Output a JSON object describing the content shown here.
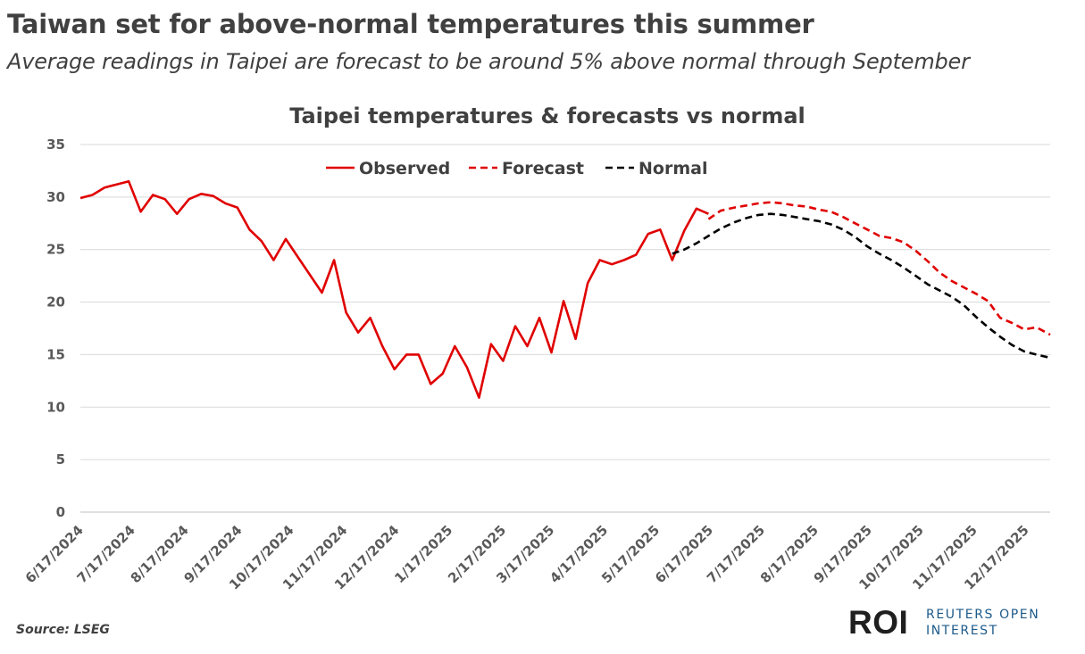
{
  "headline": "Taiwan set for above-normal temperatures this summer",
  "subheadline": "Average readings in Taipei are forecast to be around 5% above normal through September",
  "source": "Source: LSEG",
  "logo": {
    "mark": "ROI",
    "line1": "REUTERS OPEN",
    "line2": "INTEREST"
  },
  "chart_data": {
    "type": "line",
    "title": "Taipei temperatures & forecasts vs normal",
    "xlabel": "",
    "ylabel": "",
    "ylim": [
      0,
      35
    ],
    "yticks": [
      0,
      5,
      10,
      15,
      20,
      25,
      30,
      35
    ],
    "x_start": "2024-06-17",
    "x_end": "2025-12-31",
    "xticks": [
      "6/17/2024",
      "7/17/2024",
      "8/17/2024",
      "9/17/2024",
      "10/17/2024",
      "11/17/2024",
      "12/17/2024",
      "1/17/2025",
      "2/17/2025",
      "3/17/2025",
      "4/17/2025",
      "5/17/2025",
      "6/17/2025",
      "7/17/2025",
      "8/17/2025",
      "9/17/2025",
      "10/17/2025",
      "11/17/2025",
      "12/17/2025"
    ],
    "grid": true,
    "legend_position": "top-center",
    "series": [
      {
        "name": "Observed",
        "color": "#e00000",
        "style": "solid",
        "points": [
          [
            "2024-06-17",
            29.9
          ],
          [
            "2024-06-24",
            30.2
          ],
          [
            "2024-07-01",
            30.9
          ],
          [
            "2024-07-08",
            31.2
          ],
          [
            "2024-07-15",
            31.5
          ],
          [
            "2024-07-22",
            28.6
          ],
          [
            "2024-07-29",
            30.2
          ],
          [
            "2024-08-05",
            29.8
          ],
          [
            "2024-08-12",
            28.4
          ],
          [
            "2024-08-19",
            29.8
          ],
          [
            "2024-08-26",
            30.3
          ],
          [
            "2024-09-02",
            30.1
          ],
          [
            "2024-09-09",
            29.4
          ],
          [
            "2024-09-16",
            29.0
          ],
          [
            "2024-09-23",
            26.9
          ],
          [
            "2024-09-30",
            25.8
          ],
          [
            "2024-10-07",
            24.0
          ],
          [
            "2024-10-14",
            26.0
          ],
          [
            "2024-10-21",
            24.3
          ],
          [
            "2024-10-28",
            22.6
          ],
          [
            "2024-11-04",
            20.9
          ],
          [
            "2024-11-11",
            24.0
          ],
          [
            "2024-11-18",
            19.0
          ],
          [
            "2024-11-25",
            17.1
          ],
          [
            "2024-12-02",
            18.5
          ],
          [
            "2024-12-09",
            15.8
          ],
          [
            "2024-12-16",
            13.6
          ],
          [
            "2024-12-23",
            15.0
          ],
          [
            "2024-12-30",
            15.0
          ],
          [
            "2025-01-06",
            12.2
          ],
          [
            "2025-01-13",
            13.2
          ],
          [
            "2025-01-20",
            15.8
          ],
          [
            "2025-01-27",
            13.8
          ],
          [
            "2025-02-03",
            10.9
          ],
          [
            "2025-02-10",
            16.0
          ],
          [
            "2025-02-17",
            14.4
          ],
          [
            "2025-02-24",
            17.7
          ],
          [
            "2025-03-03",
            15.8
          ],
          [
            "2025-03-10",
            18.5
          ],
          [
            "2025-03-17",
            15.2
          ],
          [
            "2025-03-24",
            20.1
          ],
          [
            "2025-03-31",
            16.5
          ],
          [
            "2025-04-07",
            21.8
          ],
          [
            "2025-04-14",
            24.0
          ],
          [
            "2025-04-21",
            23.6
          ],
          [
            "2025-04-28",
            24.0
          ],
          [
            "2025-05-05",
            24.5
          ],
          [
            "2025-05-12",
            26.5
          ],
          [
            "2025-05-19",
            26.9
          ],
          [
            "2025-05-26",
            24.0
          ],
          [
            "2025-06-02",
            26.8
          ],
          [
            "2025-06-09",
            28.9
          ],
          [
            "2025-06-16",
            28.4
          ]
        ]
      },
      {
        "name": "Forecast",
        "color": "#e00000",
        "style": "dashed",
        "points": [
          [
            "2025-06-16",
            27.9
          ],
          [
            "2025-06-23",
            28.7
          ],
          [
            "2025-07-01",
            29.0
          ],
          [
            "2025-07-08",
            29.2
          ],
          [
            "2025-07-15",
            29.4
          ],
          [
            "2025-07-22",
            29.5
          ],
          [
            "2025-07-29",
            29.4
          ],
          [
            "2025-08-05",
            29.2
          ],
          [
            "2025-08-12",
            29.1
          ],
          [
            "2025-08-19",
            28.8
          ],
          [
            "2025-08-26",
            28.6
          ],
          [
            "2025-09-02",
            28.1
          ],
          [
            "2025-09-09",
            27.5
          ],
          [
            "2025-09-16",
            26.9
          ],
          [
            "2025-09-23",
            26.3
          ],
          [
            "2025-09-30",
            26.1
          ],
          [
            "2025-10-07",
            25.7
          ],
          [
            "2025-10-14",
            24.9
          ],
          [
            "2025-10-21",
            23.9
          ],
          [
            "2025-10-28",
            22.8
          ],
          [
            "2025-11-04",
            22.0
          ],
          [
            "2025-11-11",
            21.4
          ],
          [
            "2025-11-18",
            20.8
          ],
          [
            "2025-11-25",
            20.1
          ],
          [
            "2025-12-02",
            18.5
          ],
          [
            "2025-12-09",
            18.0
          ],
          [
            "2025-12-16",
            17.4
          ],
          [
            "2025-12-23",
            17.6
          ],
          [
            "2025-12-31",
            16.9
          ]
        ]
      },
      {
        "name": "Normal",
        "color": "#000000",
        "style": "dashed",
        "points": [
          [
            "2025-05-26",
            24.6
          ],
          [
            "2025-06-02",
            25.0
          ],
          [
            "2025-06-09",
            25.6
          ],
          [
            "2025-06-16",
            26.3
          ],
          [
            "2025-06-23",
            27.0
          ],
          [
            "2025-07-01",
            27.6
          ],
          [
            "2025-07-08",
            28.0
          ],
          [
            "2025-07-15",
            28.3
          ],
          [
            "2025-07-22",
            28.4
          ],
          [
            "2025-07-29",
            28.3
          ],
          [
            "2025-08-05",
            28.1
          ],
          [
            "2025-08-12",
            27.9
          ],
          [
            "2025-08-19",
            27.7
          ],
          [
            "2025-08-26",
            27.4
          ],
          [
            "2025-09-02",
            26.9
          ],
          [
            "2025-09-09",
            26.2
          ],
          [
            "2025-09-16",
            25.3
          ],
          [
            "2025-09-23",
            24.6
          ],
          [
            "2025-09-30",
            24.0
          ],
          [
            "2025-10-07",
            23.3
          ],
          [
            "2025-10-14",
            22.5
          ],
          [
            "2025-10-21",
            21.7
          ],
          [
            "2025-10-28",
            21.1
          ],
          [
            "2025-11-04",
            20.5
          ],
          [
            "2025-11-11",
            19.7
          ],
          [
            "2025-11-18",
            18.6
          ],
          [
            "2025-11-25",
            17.6
          ],
          [
            "2025-12-02",
            16.7
          ],
          [
            "2025-12-09",
            15.9
          ],
          [
            "2025-12-16",
            15.3
          ],
          [
            "2025-12-23",
            15.0
          ],
          [
            "2025-12-31",
            14.7
          ]
        ]
      }
    ]
  }
}
